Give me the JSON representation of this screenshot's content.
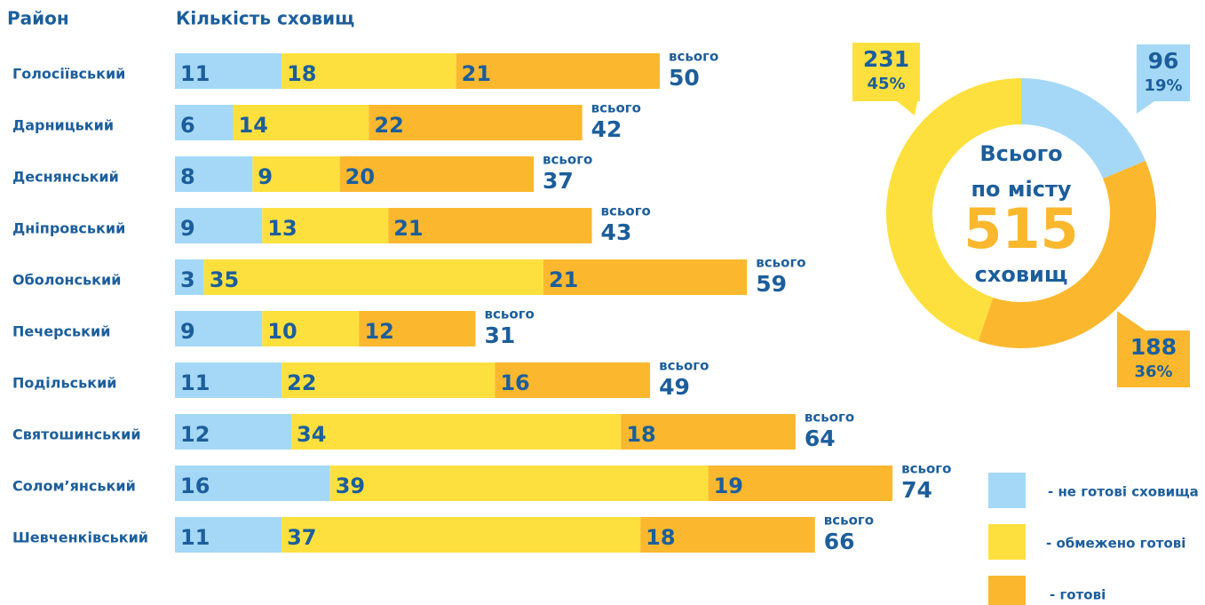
{
  "chart_data": [
    {
      "type": "stacked_bar",
      "category_header": "Район",
      "title": "Кількість сховищ",
      "categories": [
        "Голосіївський",
        "Дарницький",
        "Деснянський",
        "Дніпровський",
        "Оболонський",
        "Печерський",
        "Подільський",
        "Святошинський",
        "Солом’янський",
        "Шевченківський"
      ],
      "series": [
        {
          "name": "- не готові сховища",
          "color": "#a4d8f6",
          "values": [
            11,
            6,
            8,
            9,
            3,
            9,
            11,
            12,
            16,
            11
          ]
        },
        {
          "name": "- обмежено готові",
          "color": "#fde03e",
          "values": [
            18,
            14,
            9,
            13,
            35,
            10,
            22,
            34,
            39,
            37
          ]
        },
        {
          "name": "- готові",
          "color": "#fbb82e",
          "values": [
            21,
            22,
            20,
            21,
            21,
            12,
            16,
            18,
            19,
            18
          ]
        }
      ],
      "total_label": "всього",
      "totals": [
        50,
        42,
        37,
        43,
        59,
        31,
        49,
        64,
        74,
        66
      ]
    },
    {
      "type": "donut",
      "values": [
        96,
        188,
        231
      ],
      "colors": [
        "#a4d8f6",
        "#fbb82e",
        "#fde03e"
      ],
      "percent_labels": [
        "19%",
        "36%",
        "45%"
      ],
      "center_lines": [
        "Всього",
        "по місту"
      ],
      "total": 515,
      "unit": "сховищ"
    }
  ]
}
